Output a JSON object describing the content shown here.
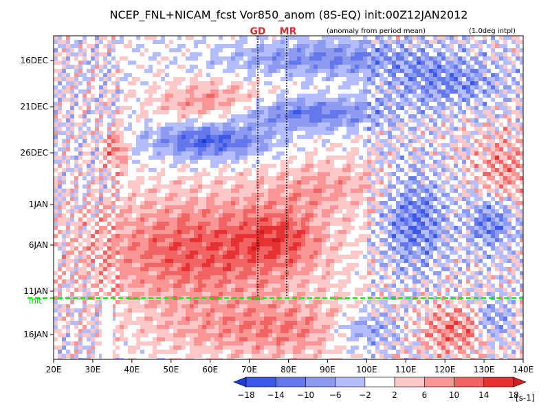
{
  "chart_data": {
    "type": "heatmap",
    "title": "NCEP_FNL+NICAM_fcst Vor850_anom (8S-EQ) init:00Z12JAN2012",
    "subtitle_left": "(anomaly from period mean)",
    "subtitle_right": "(1.0deg intpl)",
    "x_ticks": [
      "20E",
      "30E",
      "40E",
      "50E",
      "60E",
      "70E",
      "80E",
      "90E",
      "100E",
      "110E",
      "120E",
      "130E",
      "140E"
    ],
    "x_range_deg_east": [
      20,
      140
    ],
    "y_ticks": [
      "16DEC",
      "21DEC",
      "26DEC",
      "1JAN",
      "6JAN",
      "11JAN",
      "16JAN"
    ],
    "time_range": [
      "12DEC2011",
      "19JAN2012"
    ],
    "init_label": "init",
    "init_time": "12JAN2012",
    "markers": [
      {
        "label": "GD",
        "lon": 72.5
      },
      {
        "label": "MR",
        "lon": 79.5
      }
    ],
    "colorbar": {
      "levels": [
        "-18",
        "-14",
        "-10",
        "-6",
        "-2",
        "2",
        "6",
        "10",
        "14",
        "18"
      ],
      "unit": "[s-1]",
      "colors": [
        "#1e3cd6",
        "#3c5ae6",
        "#6478ec",
        "#8c9bf0",
        "#b4beff",
        "#ffffff",
        "#ffc8c8",
        "#fa9696",
        "#f06464",
        "#e63232",
        "#d21e1e"
      ]
    },
    "grid": false
  }
}
